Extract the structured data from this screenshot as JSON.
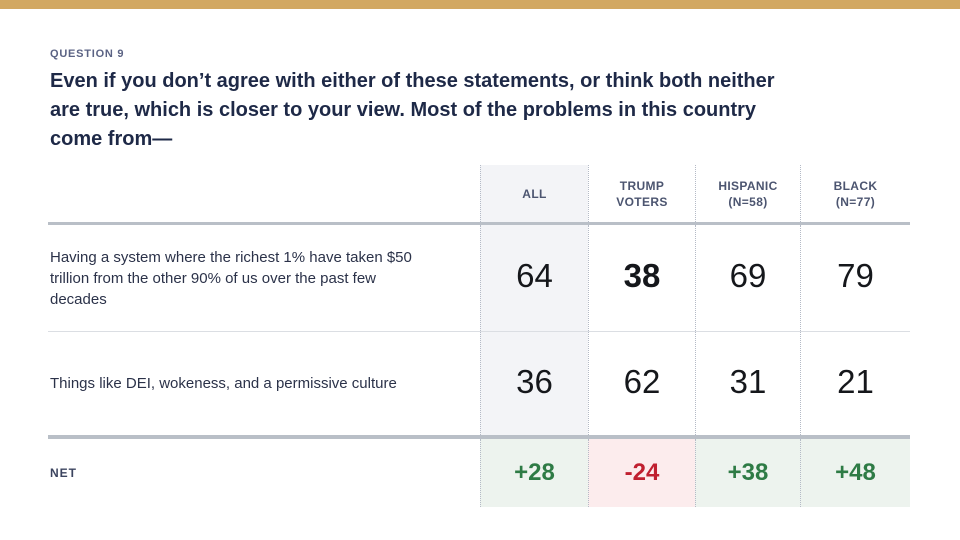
{
  "colors": {
    "accent_gold": "#d2a862",
    "title_navy": "#1e2947",
    "positive_green": "#2e7b45",
    "negative_red": "#c02030",
    "positive_bg": "#edf3ee",
    "negative_bg": "#fceced",
    "all_column_bg": "#f3f4f7"
  },
  "question": {
    "eyebrow": "QUESTION 9",
    "title_lines": [
      "Even if you don’t agree with either of these statements, or think both neither",
      "are true, which is closer to your view. Most of the problems in this country",
      "come from—"
    ]
  },
  "table": {
    "headers": [
      {
        "label": "ALL",
        "sub": ""
      },
      {
        "label": "TRUMP",
        "sub": "VOTERS"
      },
      {
        "label": "HISPANIC",
        "sub": "(N=58)"
      },
      {
        "label": "BLACK",
        "sub": "(N=77)"
      }
    ],
    "rows": [
      {
        "label": "Having a system where the richest 1% have taken $50 trillion from the other 90% of us over the past few decades",
        "values": [
          "64",
          "38",
          "69",
          "79"
        ]
      },
      {
        "label": "Things like DEI, wokeness, and a permissive culture",
        "values": [
          "36",
          "62",
          "31",
          "21"
        ]
      }
    ],
    "net": {
      "label": "NET",
      "values": [
        "+28",
        "-24",
        "+38",
        "+48"
      ]
    }
  },
  "chart_data": {
    "type": "table",
    "title": "Even if you don’t agree with either of these statements, or think both neither are true, which is closer to your view. Most of the problems in this country come from—",
    "columns": [
      "ALL",
      "TRUMP VOTERS",
      "HISPANIC (N=58)",
      "BLACK (N=77)"
    ],
    "rows": [
      {
        "label": "Having a system where the richest 1% have taken $50 trillion from the other 90% of us over the past few decades",
        "values": [
          64,
          38,
          69,
          79
        ]
      },
      {
        "label": "Things like DEI, wokeness, and a permissive culture",
        "values": [
          36,
          62,
          31,
          21
        ]
      },
      {
        "label": "NET",
        "values": [
          "+28",
          "-24",
          "+38",
          "+48"
        ]
      }
    ]
  }
}
